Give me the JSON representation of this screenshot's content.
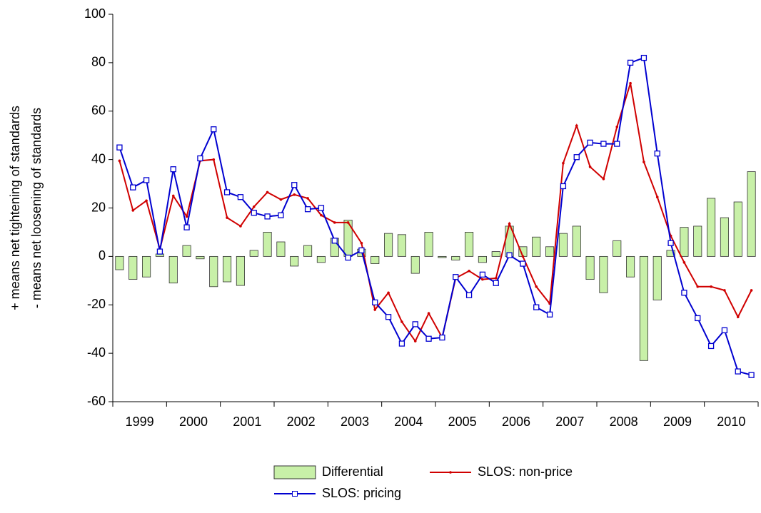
{
  "chart_data": {
    "type": "combo",
    "ylabel": [
      "+ means net tightening of standards",
      "- means net loosening of standards"
    ],
    "categories": [
      "1999",
      null,
      null,
      null,
      "2000",
      null,
      null,
      null,
      "2001",
      null,
      null,
      null,
      "2002",
      null,
      null,
      null,
      "2003",
      null,
      null,
      null,
      "2004",
      null,
      null,
      null,
      "2005",
      null,
      null,
      null,
      "2006",
      null,
      null,
      null,
      "2007",
      null,
      null,
      null,
      "2008",
      null,
      null,
      null,
      "2009",
      null,
      null,
      null,
      "2010",
      null,
      null,
      null
    ],
    "ylim": [
      -60,
      100
    ],
    "yticks": [
      -60,
      -40,
      -20,
      0,
      20,
      40,
      60,
      80,
      100
    ],
    "series": [
      {
        "name": "Differential",
        "type": "bar",
        "color": "#c8f0a8",
        "values": [
          -5.5,
          -9.5,
          -8.5,
          1,
          -11,
          4.5,
          -1,
          -12.5,
          -10.5,
          -12,
          2.5,
          10,
          6,
          -4,
          4.5,
          -2.5,
          7.5,
          15,
          3,
          -3,
          9.5,
          9,
          -7,
          10,
          -0.5,
          -1.5,
          10,
          -2.5,
          2,
          12.5,
          4,
          8,
          4,
          9.5,
          12.5,
          -9.5,
          -15,
          6.5,
          -8.5,
          -43,
          -18,
          2.5,
          12,
          12.5,
          24,
          16,
          22.5,
          35
        ]
      },
      {
        "name": "SLOS: non-price",
        "type": "line",
        "marker": "dot",
        "color": "#d00000",
        "values": [
          39.5,
          19,
          23,
          3,
          25,
          16.5,
          39.5,
          40,
          16,
          12.5,
          20.5,
          26.5,
          23.5,
          25.5,
          24,
          17,
          14,
          14,
          5.5,
          -22,
          -15,
          -27,
          -35,
          -23.5,
          -33.5,
          -9,
          -6,
          -9.5,
          -9,
          13.5,
          0,
          -12.5,
          -19.5,
          38.5,
          54,
          37,
          32,
          53.5,
          71.5,
          39,
          24.5,
          8.5,
          -2.5,
          -12.5,
          -12.5,
          -14,
          -25,
          -14
        ]
      },
      {
        "name": "SLOS: pricing",
        "type": "line",
        "marker": "square",
        "color": "#0000d0",
        "values": [
          45,
          28.5,
          31.5,
          2,
          36,
          12,
          40.5,
          52.5,
          26.5,
          24.5,
          18,
          16.5,
          17,
          29.5,
          19.5,
          20,
          6.5,
          -0.5,
          2.5,
          -19,
          -25,
          -36,
          -28,
          -34,
          -33.5,
          -8.5,
          -16,
          -7.5,
          -11,
          0.5,
          -3,
          -21,
          -24,
          29,
          41,
          47,
          46.5,
          46.5,
          80,
          82,
          42.5,
          5.5,
          -15,
          -25.5,
          -37,
          -30.5,
          -47.5,
          -49
        ]
      }
    ]
  }
}
